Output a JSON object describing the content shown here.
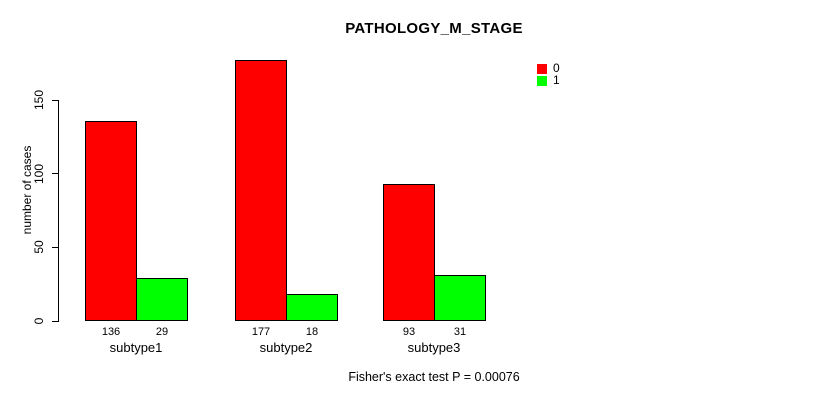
{
  "chart_data": {
    "type": "bar",
    "title": "PATHOLOGY_M_STAGE",
    "xlabel": "",
    "ylabel": "number of cases",
    "categories": [
      "subtype1",
      "subtype2",
      "subtype3"
    ],
    "series": [
      {
        "name": "0",
        "color": "#ff0000",
        "values": [
          136,
          177,
          93
        ]
      },
      {
        "name": "1",
        "color": "#00ff00",
        "values": [
          29,
          18,
          31
        ]
      }
    ],
    "yticks": [
      0,
      50,
      100,
      150
    ],
    "ylim": [
      0,
      180
    ],
    "grid": false,
    "legend_position": "top-right",
    "bar_value_labels_shown": true,
    "annotation": "Fisher's exact test P = 0.00076"
  }
}
